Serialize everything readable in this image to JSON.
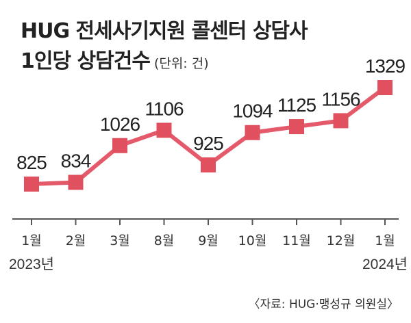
{
  "title": {
    "line1": "HUG 전세사기지원 콜센터 상담사",
    "line2": "1인당 상담건수",
    "unit": "(단위: 건)"
  },
  "source": "〈자료: HUG·맹성규 의원실〉",
  "colors": {
    "line": "#e45a6a",
    "marker": "#e1505f",
    "axis": "#555555",
    "text": "#222222"
  },
  "chart_data": {
    "type": "line",
    "categories": [
      "1월",
      "2월",
      "3월",
      "8월",
      "9월",
      "10월",
      "11월",
      "12월",
      "1월"
    ],
    "year_labels": [
      {
        "index": 0,
        "text": "2023년"
      },
      {
        "index": 8,
        "text": "2024년"
      }
    ],
    "series": [
      {
        "values": [
          825,
          834,
          1026,
          1106,
          925,
          1094,
          1125,
          1156,
          1329
        ]
      }
    ],
    "data_labels": [
      "825",
      "834",
      "1026",
      "1106",
      "925",
      "1094",
      "1125",
      "1156",
      "1329"
    ],
    "ylim": [
      600,
      1400
    ],
    "grid": false,
    "legend": "none"
  }
}
